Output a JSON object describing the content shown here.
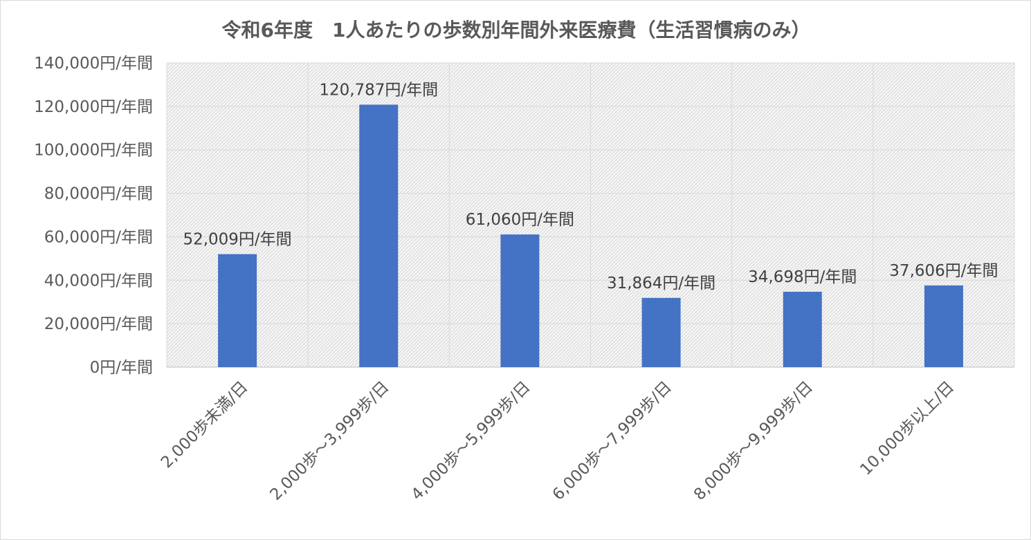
{
  "chart_data": {
    "type": "bar",
    "title": "令和6年度　1人あたりの歩数別年間外来医療費（生活習慣病のみ）",
    "xlabel": "",
    "ylabel": "",
    "ylim": [
      0,
      140000
    ],
    "ytick_values": [
      0,
      20000,
      40000,
      60000,
      80000,
      100000,
      120000,
      140000
    ],
    "ytick_labels": [
      "0円/年間",
      "20,000円/年間",
      "40,000円/年間",
      "60,000円/年間",
      "80,000円/年間",
      "100,000円/年間",
      "120,000円/年間",
      "140,000円/年間"
    ],
    "categories": [
      "2,000歩未満/日",
      "2,000歩～3,999歩/日",
      "4,000歩～5,999歩/日",
      "6,000歩～7,999歩/日",
      "8,000歩～9,999歩/日",
      "10,000歩以上/日"
    ],
    "values": [
      52009,
      120787,
      61060,
      31864,
      34698,
      37606
    ],
    "data_labels": [
      "52,009円/年間",
      "120,787円/年間",
      "61,060円/年間",
      "31,864円/年間",
      "34,698円/年間",
      "37,606円/年間"
    ],
    "bar_color": "#4472c4",
    "grid": true,
    "plot_background": "hatched-light-gray",
    "legend": "none"
  }
}
